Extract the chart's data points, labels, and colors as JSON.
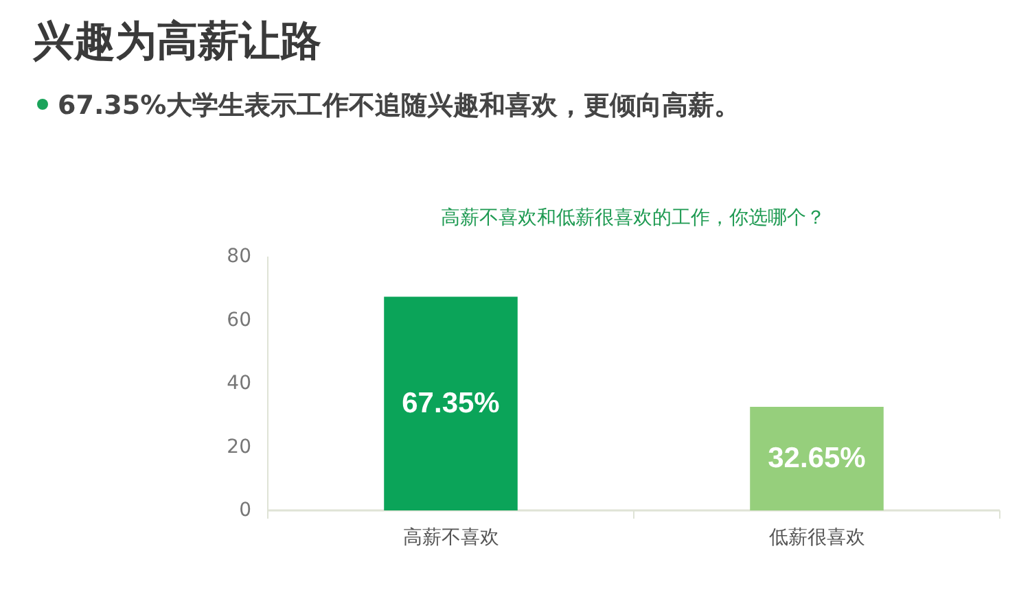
{
  "chart_data": {
    "type": "bar",
    "title": "兴趣为高薪让路",
    "subtitle": "67.35%大学生表示工作不追随兴趣和喜欢，更倾向高薪。",
    "annotations": [
      "高薪不喜欢和低薪很喜欢的工作，你选哪个？"
    ],
    "categories": [
      "高薪不喜欢",
      "低薪很喜欢"
    ],
    "values": [
      67.35,
      32.65
    ],
    "colors": [
      "#0ba459",
      "#96cf7c"
    ],
    "value_labels": [
      "67.35%",
      "32.65%"
    ],
    "ylim": [
      0,
      80
    ],
    "yticks": [
      0,
      20,
      40,
      60,
      80
    ],
    "grid": false
  }
}
